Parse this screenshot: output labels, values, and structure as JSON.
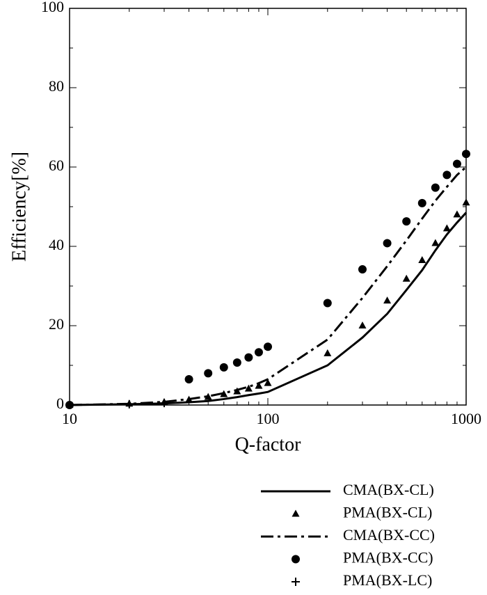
{
  "chart_data": {
    "type": "line",
    "xlabel": "Q-factor",
    "ylabel": "Efficiency[%]",
    "xscale": "log",
    "xlim": [
      10,
      1000
    ],
    "xticks": [
      10,
      100,
      1000
    ],
    "ylim": [
      0,
      100
    ],
    "yticks": [
      0,
      20,
      40,
      60,
      80,
      100
    ],
    "x": [
      10,
      20,
      30,
      40,
      50,
      60,
      70,
      80,
      90,
      100,
      200,
      300,
      400,
      500,
      600,
      700,
      800,
      900,
      1000
    ],
    "series": [
      {
        "name": "CMA(BX-CL)",
        "color": "#000000",
        "style": "solid",
        "values": [
          0,
          0.2,
          0.4,
          0.7,
          1.0,
          1.5,
          2.0,
          2.5,
          2.9,
          3.3,
          10,
          17,
          23,
          29,
          34,
          39,
          43,
          46,
          48.5
        ]
      },
      {
        "name": "PMA(BX-CL)",
        "color": "#000000",
        "style": "triangle",
        "values": [
          0,
          0.3,
          0.7,
          1.3,
          2,
          2.7,
          3.4,
          4.1,
          4.8,
          5.5,
          13,
          20,
          26.3,
          31.8,
          36.5,
          40.8,
          44.5,
          48,
          51
        ]
      },
      {
        "name": "CMA(BX-CC)",
        "color": "#000000",
        "style": "dashdot",
        "values": [
          0,
          0.3,
          0.8,
          1.5,
          2.2,
          3,
          3.8,
          4.6,
          5.5,
          6.5,
          16.5,
          27,
          35,
          41.5,
          47,
          51.5,
          55,
          58,
          60
        ]
      },
      {
        "name": "PMA(BX-CC)",
        "color": "#000000",
        "style": "circle",
        "values": [
          0,
          null,
          null,
          6.5,
          8,
          9.5,
          10.7,
          12,
          13.3,
          14.7,
          25.7,
          34.2,
          40.8,
          46.3,
          50.9,
          54.8,
          58,
          60.8,
          63.3
        ]
      },
      {
        "name": "PMA(BX-LC)",
        "color": "#000000",
        "style": "plus",
        "values": [
          0,
          0.2,
          0.5,
          null,
          null,
          null,
          null,
          null,
          null,
          null,
          null,
          null,
          null,
          null,
          null,
          null,
          null,
          null,
          null
        ]
      }
    ]
  }
}
